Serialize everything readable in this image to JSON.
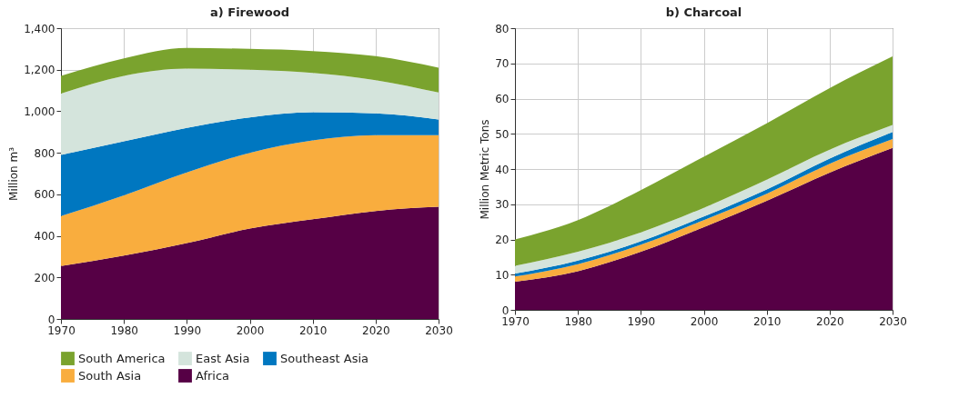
{
  "chart_data": [
    {
      "type": "area",
      "title": "a) Firewood",
      "ylabel": "Million m³",
      "stacked": true,
      "grid": true,
      "legend": "bottom",
      "x": [
        1970,
        1980,
        1990,
        2000,
        2010,
        2020,
        2030
      ],
      "xlim": [
        1970,
        2030
      ],
      "xticks": [
        1970,
        1980,
        1990,
        2000,
        2010,
        2020,
        2030
      ],
      "ylim": [
        0,
        1400
      ],
      "yticks": [
        0,
        200,
        400,
        600,
        800,
        {
          "value": 1000,
          "label": "1,000"
        },
        {
          "value": 1200,
          "label": "1,200"
        },
        {
          "value": 1400,
          "label": "1,400"
        }
      ],
      "series": [
        {
          "name": "Africa",
          "color": "#560045",
          "values": [
            255,
            305,
            365,
            435,
            480,
            520,
            540
          ]
        },
        {
          "name": "South Asia",
          "color": "#f9ad3e",
          "values": [
            240,
            290,
            340,
            365,
            380,
            365,
            345
          ]
        },
        {
          "name": "Southeast Asia",
          "color": "#0077c0",
          "values": [
            295,
            260,
            215,
            170,
            135,
            105,
            75
          ]
        },
        {
          "name": "East Asia",
          "color": "#d4e4dc",
          "values": [
            295,
            315,
            285,
            230,
            190,
            160,
            130
          ]
        },
        {
          "name": "South America",
          "color": "#7aa32e",
          "values": [
            85,
            85,
            100,
            100,
            105,
            115,
            120
          ]
        }
      ]
    },
    {
      "type": "area",
      "title": "b) Charcoal",
      "ylabel": "Million Metric Tons",
      "stacked": true,
      "grid": true,
      "x": [
        1970,
        1980,
        1990,
        2000,
        2010,
        2020,
        2030
      ],
      "xlim": [
        1970,
        2030
      ],
      "xticks": [
        1970,
        1980,
        1990,
        2000,
        2010,
        2020,
        2030
      ],
      "ylim": [
        0,
        80
      ],
      "yticks": [
        0,
        10,
        20,
        30,
        40,
        50,
        60,
        70,
        80
      ],
      "series": [
        {
          "color": "#560045",
          "values": [
            8,
            11,
            16.5,
            23.5,
            31,
            39,
            46
          ]
        },
        {
          "color": "#f9ad3e",
          "values": [
            1.5,
            2,
            2,
            2,
            2,
            2.5,
            2.5
          ]
        },
        {
          "color": "#0077c0",
          "values": [
            0.8,
            1,
            1,
            1,
            1.2,
            1.5,
            2
          ]
        },
        {
          "color": "#d4e4dc",
          "values": [
            2.2,
            2.5,
            2.5,
            2.5,
            2.8,
            2.5,
            2
          ]
        },
        {
          "color": "#7aa32e",
          "values": [
            7.5,
            9,
            12,
            14.5,
            16,
            17.5,
            19.5
          ]
        }
      ]
    }
  ]
}
